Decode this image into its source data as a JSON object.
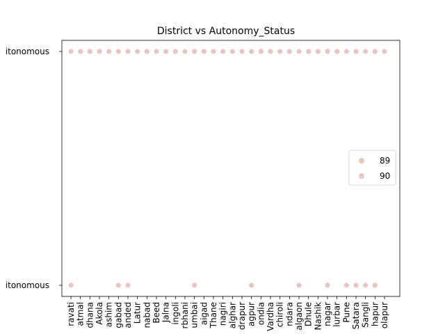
{
  "chart_data": {
    "type": "scatter",
    "title": "District vs Autonomy_Status",
    "xlabel": "",
    "ylabel": "",
    "x_categories": [
      "Amravati",
      "Yavatmal",
      "Buldhana",
      "Akola",
      "Washim",
      "Aurangabad",
      "Nanded",
      "Latur",
      "Osmanabad",
      "Beed",
      "Jalna",
      "Hingoli",
      "Parbhani",
      "Mumbai",
      "Raigad",
      "Thane",
      "Ratnagiri",
      "Palghar",
      "Chandrapur",
      "Nagpur",
      "Gondia",
      "Wardha",
      "Gadchiroli",
      "Bhandara",
      "Jalgaon",
      "Dhule",
      "Nashik",
      "Ahmednagar",
      "Nandurbar",
      "Pune",
      "Satara",
      "Sangli",
      "Kolhapur",
      "Solapur"
    ],
    "x_tick_labels_visible": [
      "ravati",
      "atmal",
      "dhana",
      "Akola",
      "ashim",
      "gabad",
      "anded",
      "Latur",
      "nabad",
      "Beed",
      "Jalna",
      "ingoli",
      "rbhani",
      "umbai",
      "aigad",
      "Thane",
      "nagiri",
      "alghar",
      "drapur",
      "agpur",
      "ondia",
      "Vardha",
      "chiroli",
      "ndara",
      "algaon",
      "Dhule",
      "Nashik",
      "nagar",
      "lurbar",
      "Pune",
      "Satara",
      "Sangli",
      "hapur",
      "olapur"
    ],
    "y_categories": [
      "Non-Autonomous",
      "Autonomous"
    ],
    "y_tick_labels_visible": [
      "itonomous",
      "itonomous"
    ],
    "points": [
      {
        "x": "Amravati",
        "y": "Autonomous"
      },
      {
        "x": "Amravati",
        "y": "Non-Autonomous"
      },
      {
        "x": "Yavatmal",
        "y": "Autonomous"
      },
      {
        "x": "Buldhana",
        "y": "Autonomous"
      },
      {
        "x": "Akola",
        "y": "Autonomous"
      },
      {
        "x": "Washim",
        "y": "Autonomous"
      },
      {
        "x": "Aurangabad",
        "y": "Autonomous"
      },
      {
        "x": "Aurangabad",
        "y": "Non-Autonomous"
      },
      {
        "x": "Nanded",
        "y": "Autonomous"
      },
      {
        "x": "Nanded",
        "y": "Non-Autonomous"
      },
      {
        "x": "Latur",
        "y": "Autonomous"
      },
      {
        "x": "Osmanabad",
        "y": "Autonomous"
      },
      {
        "x": "Beed",
        "y": "Autonomous"
      },
      {
        "x": "Jalna",
        "y": "Autonomous"
      },
      {
        "x": "Hingoli",
        "y": "Autonomous"
      },
      {
        "x": "Parbhani",
        "y": "Autonomous"
      },
      {
        "x": "Mumbai",
        "y": "Autonomous"
      },
      {
        "x": "Mumbai",
        "y": "Non-Autonomous"
      },
      {
        "x": "Raigad",
        "y": "Autonomous"
      },
      {
        "x": "Thane",
        "y": "Autonomous"
      },
      {
        "x": "Ratnagiri",
        "y": "Autonomous"
      },
      {
        "x": "Palghar",
        "y": "Autonomous"
      },
      {
        "x": "Chandrapur",
        "y": "Autonomous"
      },
      {
        "x": "Nagpur",
        "y": "Autonomous"
      },
      {
        "x": "Nagpur",
        "y": "Non-Autonomous"
      },
      {
        "x": "Gondia",
        "y": "Autonomous"
      },
      {
        "x": "Wardha",
        "y": "Autonomous"
      },
      {
        "x": "Gadchiroli",
        "y": "Autonomous"
      },
      {
        "x": "Bhandara",
        "y": "Autonomous"
      },
      {
        "x": "Jalgaon",
        "y": "Autonomous"
      },
      {
        "x": "Jalgaon",
        "y": "Non-Autonomous"
      },
      {
        "x": "Dhule",
        "y": "Autonomous"
      },
      {
        "x": "Nashik",
        "y": "Autonomous"
      },
      {
        "x": "Ahmednagar",
        "y": "Autonomous"
      },
      {
        "x": "Ahmednagar",
        "y": "Non-Autonomous"
      },
      {
        "x": "Nandurbar",
        "y": "Autonomous"
      },
      {
        "x": "Pune",
        "y": "Autonomous"
      },
      {
        "x": "Pune",
        "y": "Non-Autonomous"
      },
      {
        "x": "Satara",
        "y": "Autonomous"
      },
      {
        "x": "Satara",
        "y": "Non-Autonomous"
      },
      {
        "x": "Sangli",
        "y": "Autonomous"
      },
      {
        "x": "Sangli",
        "y": "Non-Autonomous"
      },
      {
        "x": "Kolhapur",
        "y": "Autonomous"
      },
      {
        "x": "Kolhapur",
        "y": "Non-Autonomous"
      },
      {
        "x": "Solapur",
        "y": "Autonomous"
      }
    ],
    "legend": {
      "placement": "center-right",
      "entries": [
        "89",
        "90"
      ]
    },
    "marker_color": "#e8c6bd",
    "grid": false
  }
}
